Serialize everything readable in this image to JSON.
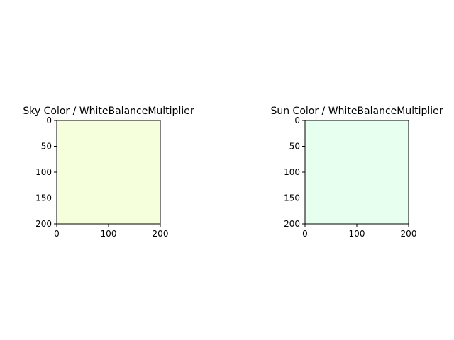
{
  "chart_data": [
    {
      "type": "heatmap",
      "title": "Sky Color / WhiteBalanceMultiplier",
      "image_color": "#f6ffdb",
      "image_extent": [
        0,
        200
      ],
      "xlim": [
        0,
        200
      ],
      "ylim": [
        200,
        0
      ],
      "xticks": [
        0,
        100,
        200
      ],
      "yticks": [
        0,
        50,
        100,
        150,
        200
      ],
      "xtick_labels": [
        "0",
        "100",
        "200"
      ],
      "ytick_labels": [
        "0",
        "50",
        "100",
        "150",
        "200"
      ],
      "xlabel": "",
      "ylabel": "",
      "grid": false
    },
    {
      "type": "heatmap",
      "title": "Sun Color / WhiteBalanceMultiplier",
      "image_color": "#e6ffee",
      "image_extent": [
        0,
        200
      ],
      "xlim": [
        0,
        200
      ],
      "ylim": [
        200,
        0
      ],
      "xticks": [
        0,
        100,
        200
      ],
      "yticks": [
        0,
        50,
        100,
        150,
        200
      ],
      "xtick_labels": [
        "0",
        "100",
        "200"
      ],
      "ytick_labels": [
        "0",
        "50",
        "100",
        "150",
        "200"
      ],
      "xlabel": "",
      "ylabel": "",
      "grid": false
    }
  ]
}
